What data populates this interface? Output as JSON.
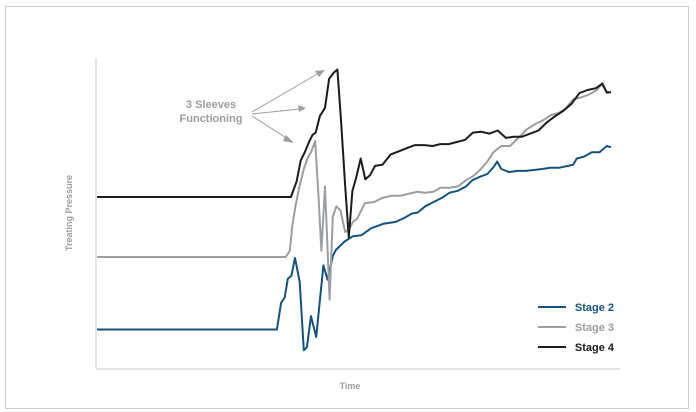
{
  "chart_data": {
    "type": "line",
    "title": "",
    "xlabel": "Time",
    "ylabel": "Treating Pressure",
    "xlim": [
      0,
      100
    ],
    "ylim": [
      0,
      100
    ],
    "grid": false,
    "legend_position": "bottom-right",
    "annotation": {
      "lines": [
        "3 Sleeves",
        "Functioning"
      ],
      "color": "#9a9ea3"
    },
    "series": [
      {
        "name": "Stage 2",
        "color": "#15527e",
        "points": [
          [
            0,
            12.7
          ],
          [
            34.8,
            12.7
          ],
          [
            35.6,
            21.3
          ],
          [
            36.3,
            23.0
          ],
          [
            36.9,
            29.0
          ],
          [
            37.6,
            30.0
          ],
          [
            38.3,
            35.7
          ],
          [
            39.2,
            28.0
          ],
          [
            40.0,
            6.0
          ],
          [
            40.6,
            7.0
          ],
          [
            41.4,
            17.0
          ],
          [
            42.4,
            10.3
          ],
          [
            43.8,
            33.3
          ],
          [
            44.6,
            28.7
          ],
          [
            45.6,
            36.3
          ],
          [
            46.2,
            38.3
          ],
          [
            47.9,
            41.0
          ],
          [
            49.5,
            42.7
          ],
          [
            51.1,
            43.0
          ],
          [
            53.1,
            45.3
          ],
          [
            55.4,
            46.7
          ],
          [
            57.8,
            47.3
          ],
          [
            59.6,
            48.7
          ],
          [
            60.9,
            50.0
          ],
          [
            62.0,
            50.3
          ],
          [
            63.5,
            52.3
          ],
          [
            65.1,
            53.7
          ],
          [
            66.7,
            55.0
          ],
          [
            68.2,
            56.7
          ],
          [
            69.8,
            57.3
          ],
          [
            71.4,
            58.7
          ],
          [
            72.6,
            60.7
          ],
          [
            73.9,
            61.7
          ],
          [
            75.5,
            62.7
          ],
          [
            76.6,
            64.7
          ],
          [
            77.4,
            66.7
          ],
          [
            78.2,
            64.3
          ],
          [
            79.7,
            63.3
          ],
          [
            81.3,
            63.7
          ],
          [
            82.9,
            63.7
          ],
          [
            84.5,
            64.0
          ],
          [
            86.1,
            64.3
          ],
          [
            87.7,
            64.7
          ],
          [
            89.3,
            64.7
          ],
          [
            91.1,
            65.3
          ],
          [
            92.1,
            65.7
          ],
          [
            92.8,
            67.7
          ],
          [
            94.2,
            68.3
          ],
          [
            95.7,
            69.7
          ],
          [
            97.2,
            69.7
          ],
          [
            98.6,
            71.7
          ],
          [
            99.4,
            71.3
          ]
        ]
      },
      {
        "name": "Stage 3",
        "color": "#9a9ea3",
        "points": [
          [
            0,
            36.0
          ],
          [
            36.5,
            36.0
          ],
          [
            37.3,
            38.0
          ],
          [
            37.8,
            46.3
          ],
          [
            38.5,
            53.3
          ],
          [
            39.2,
            59.0
          ],
          [
            40.0,
            64.3
          ],
          [
            40.8,
            68.0
          ],
          [
            41.4,
            69.7
          ],
          [
            42.2,
            73.3
          ],
          [
            42.8,
            56.7
          ],
          [
            43.4,
            38.0
          ],
          [
            44.1,
            58.7
          ],
          [
            45.0,
            22.3
          ],
          [
            45.6,
            49.0
          ],
          [
            46.3,
            52.3
          ],
          [
            47.1,
            51.0
          ],
          [
            48.0,
            44.0
          ],
          [
            48.8,
            45.0
          ],
          [
            49.5,
            47.3
          ],
          [
            50.3,
            48.3
          ],
          [
            51.8,
            53.3
          ],
          [
            53.6,
            53.7
          ],
          [
            55.2,
            55.0
          ],
          [
            56.9,
            55.7
          ],
          [
            58.6,
            55.7
          ],
          [
            60.2,
            56.3
          ],
          [
            62.0,
            57.0
          ],
          [
            63.5,
            56.7
          ],
          [
            65.1,
            57.0
          ],
          [
            66.4,
            58.3
          ],
          [
            68.2,
            58.3
          ],
          [
            69.8,
            58.7
          ],
          [
            71.4,
            60.7
          ],
          [
            72.7,
            62.0
          ],
          [
            73.9,
            63.7
          ],
          [
            75.5,
            66.7
          ],
          [
            76.7,
            69.7
          ],
          [
            78.2,
            71.7
          ],
          [
            79.9,
            71.7
          ],
          [
            81.5,
            74.3
          ],
          [
            83.1,
            77.0
          ],
          [
            84.7,
            78.7
          ],
          [
            86.3,
            80.0
          ],
          [
            87.9,
            81.7
          ],
          [
            89.3,
            82.3
          ],
          [
            90.6,
            83.7
          ],
          [
            92.1,
            86.7
          ],
          [
            93.6,
            87.3
          ],
          [
            95.2,
            88.3
          ],
          [
            96.7,
            89.7
          ],
          [
            97.8,
            92.0
          ],
          [
            98.6,
            88.7
          ],
          [
            99.4,
            89.0
          ]
        ]
      },
      {
        "name": "Stage 4",
        "color": "#1c1c1c",
        "points": [
          [
            0,
            55.3
          ],
          [
            37.5,
            55.3
          ],
          [
            38.6,
            60.3
          ],
          [
            39.4,
            67.0
          ],
          [
            40.2,
            69.7
          ],
          [
            41.0,
            73.0
          ],
          [
            41.7,
            75.3
          ],
          [
            42.3,
            76.0
          ],
          [
            43.1,
            81.3
          ],
          [
            44.1,
            84.0
          ],
          [
            44.9,
            93.3
          ],
          [
            45.8,
            95.3
          ],
          [
            46.5,
            96.3
          ],
          [
            47.2,
            80.0
          ],
          [
            48.0,
            58.7
          ],
          [
            48.7,
            42.3
          ],
          [
            49.4,
            57.3
          ],
          [
            50.1,
            61.3
          ],
          [
            51.0,
            67.7
          ],
          [
            51.9,
            61.0
          ],
          [
            52.8,
            62.3
          ],
          [
            53.8,
            65.3
          ],
          [
            55.2,
            65.7
          ],
          [
            56.8,
            69.0
          ],
          [
            58.4,
            70.0
          ],
          [
            59.9,
            71.0
          ],
          [
            61.5,
            72.0
          ],
          [
            63.3,
            72.0
          ],
          [
            64.9,
            71.7
          ],
          [
            66.4,
            72.3
          ],
          [
            68.0,
            72.3
          ],
          [
            69.6,
            73.0
          ],
          [
            71.2,
            73.7
          ],
          [
            72.7,
            76.0
          ],
          [
            74.3,
            76.3
          ],
          [
            75.9,
            75.7
          ],
          [
            77.5,
            76.7
          ],
          [
            79.1,
            74.3
          ],
          [
            80.6,
            74.7
          ],
          [
            82.2,
            74.7
          ],
          [
            83.8,
            75.7
          ],
          [
            85.4,
            76.7
          ],
          [
            87.0,
            79.3
          ],
          [
            88.6,
            81.3
          ],
          [
            90.2,
            83.0
          ],
          [
            91.8,
            85.3
          ],
          [
            93.3,
            88.7
          ],
          [
            94.9,
            89.7
          ],
          [
            96.5,
            90.3
          ],
          [
            97.7,
            91.7
          ],
          [
            98.6,
            89.0
          ],
          [
            99.4,
            89.0
          ]
        ]
      }
    ]
  }
}
